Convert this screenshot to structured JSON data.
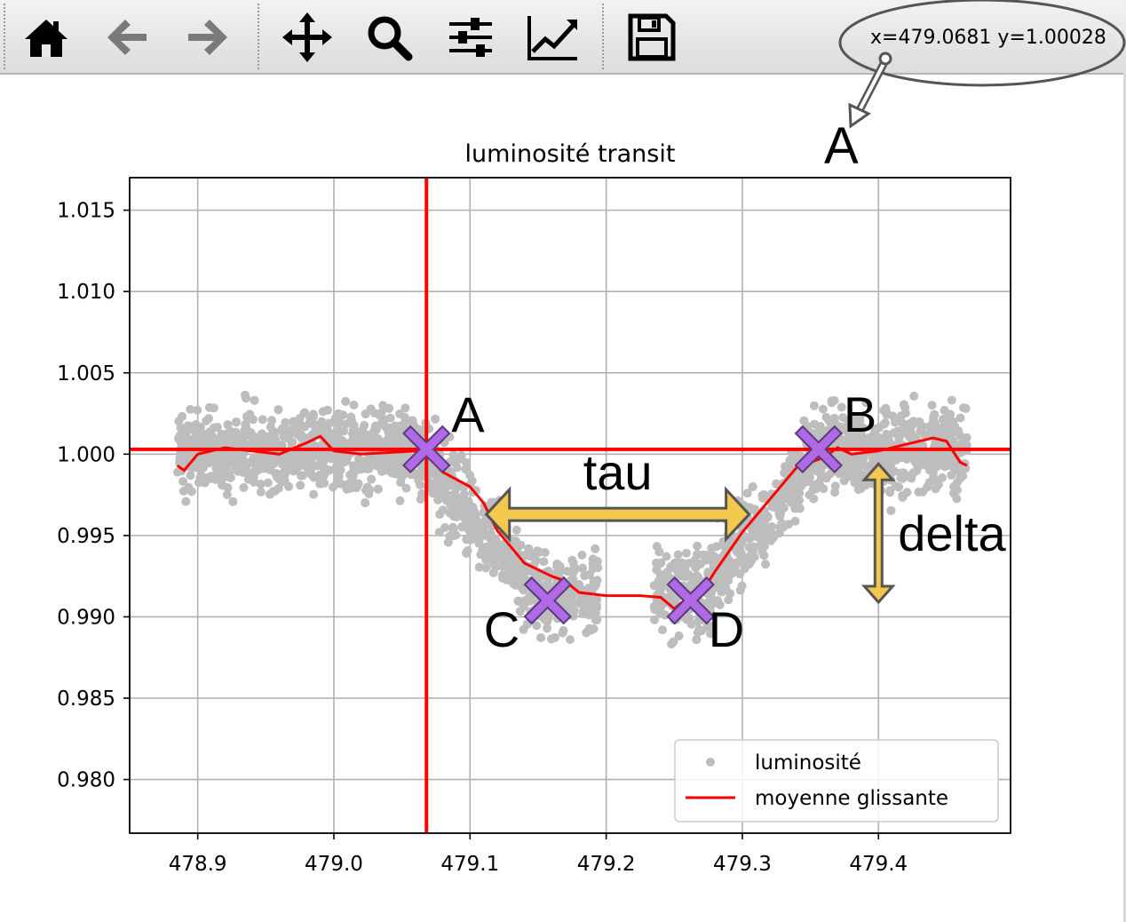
{
  "toolbar": {
    "buttons": [
      {
        "name": "home-button",
        "icon": "home-icon",
        "disabled": false
      },
      {
        "name": "back-button",
        "icon": "arrow-left-icon",
        "disabled": true
      },
      {
        "name": "forward-button",
        "icon": "arrow-right-icon",
        "disabled": true
      },
      {
        "name": "pan-button",
        "icon": "move-icon",
        "disabled": false
      },
      {
        "name": "zoom-button",
        "icon": "magnifier-icon",
        "disabled": false
      },
      {
        "name": "configure-subplots-button",
        "icon": "sliders-icon",
        "disabled": false
      },
      {
        "name": "edit-axes-button",
        "icon": "line-chart-icon",
        "disabled": false
      },
      {
        "name": "save-button",
        "icon": "floppy-disk-icon",
        "disabled": false
      }
    ],
    "coordinates": "x=479.0681 y=1.00028"
  },
  "colors": {
    "scatter": "#bdbdbd",
    "moving_average": "#ff0000",
    "marker": "#b06ae8",
    "arrow": "#f2c94c",
    "arrow_stroke": "#555555",
    "grid": "#b0b0b0"
  },
  "chart_data": {
    "type": "scatter",
    "title": "luminosité transit",
    "xlabel": "",
    "ylabel": "",
    "xlim": [
      478.85,
      479.497
    ],
    "ylim": [
      0.9767,
      1.017
    ],
    "xticks": [
      478.9,
      479.0,
      479.1,
      479.2,
      479.3,
      479.4
    ],
    "xtick_labels": [
      "478.9",
      "479.0",
      "479.1",
      "479.2",
      "479.3",
      "479.4"
    ],
    "yticks": [
      0.98,
      0.985,
      0.99,
      0.995,
      1.0,
      1.005,
      1.01,
      1.015
    ],
    "ytick_labels": [
      "0.980",
      "0.985",
      "0.990",
      "0.995",
      "1.000",
      "1.005",
      "1.010",
      "1.015"
    ],
    "grid": true,
    "legend": {
      "placement": "lower right",
      "entries": [
        "luminosité",
        "moyenne glissante"
      ]
    },
    "scatter_series": {
      "name": "luminosité",
      "x_range": [
        478.885,
        479.465
      ],
      "baseline": 1.0003,
      "transit_depth": 0.0088,
      "noise_std": 0.0032
    },
    "moving_average": {
      "name": "moyenne glissante",
      "x": [
        478.885,
        478.89,
        478.9,
        478.92,
        478.94,
        478.96,
        478.98,
        478.99,
        479.0,
        479.02,
        479.04,
        479.06,
        479.068,
        479.08,
        479.1,
        479.11,
        479.12,
        479.13,
        479.14,
        479.16,
        479.17,
        479.18,
        479.2,
        479.225,
        479.24,
        479.25,
        479.26,
        479.27,
        479.28,
        479.3,
        479.32,
        479.34,
        479.36,
        479.37,
        479.38,
        479.4,
        479.42,
        479.44,
        479.45,
        479.46,
        479.465
      ],
      "y": [
        0.9993,
        0.999,
        1.0,
        1.0004,
        1.0002,
        1.0,
        1.0007,
        1.0011,
        1.0002,
        1.0,
        1.0001,
        1.0002,
        1.0,
        0.9989,
        0.998,
        0.997,
        0.9953,
        0.9943,
        0.9933,
        0.9925,
        0.9922,
        0.9915,
        0.9913,
        0.9913,
        0.9912,
        0.9905,
        0.9912,
        0.9915,
        0.9928,
        0.9952,
        0.9972,
        0.9992,
        0.9998,
        1.0004,
        1.0,
        1.0002,
        1.0006,
        1.001,
        1.0008,
        0.9995,
        0.9993
      ]
    },
    "hline": {
      "y": 1.0003
    },
    "vline": {
      "x": 479.068
    },
    "points": [
      {
        "label": "A",
        "x": 479.068,
        "y": 1.0003
      },
      {
        "label": "B",
        "x": 479.356,
        "y": 1.0003
      },
      {
        "label": "C",
        "x": 479.157,
        "y": 0.991
      },
      {
        "label": "D",
        "x": 479.262,
        "y": 0.991
      }
    ],
    "annotations": {
      "tau_label": "tau",
      "delta_label": "delta",
      "toolbar_callout_label": "A",
      "tau_arrow": {
        "x_start": 479.112,
        "x_end": 479.305,
        "y": 0.9963
      },
      "delta_arrow": {
        "x": 479.4,
        "y_start": 0.9994,
        "y_end": 0.9909
      }
    }
  }
}
